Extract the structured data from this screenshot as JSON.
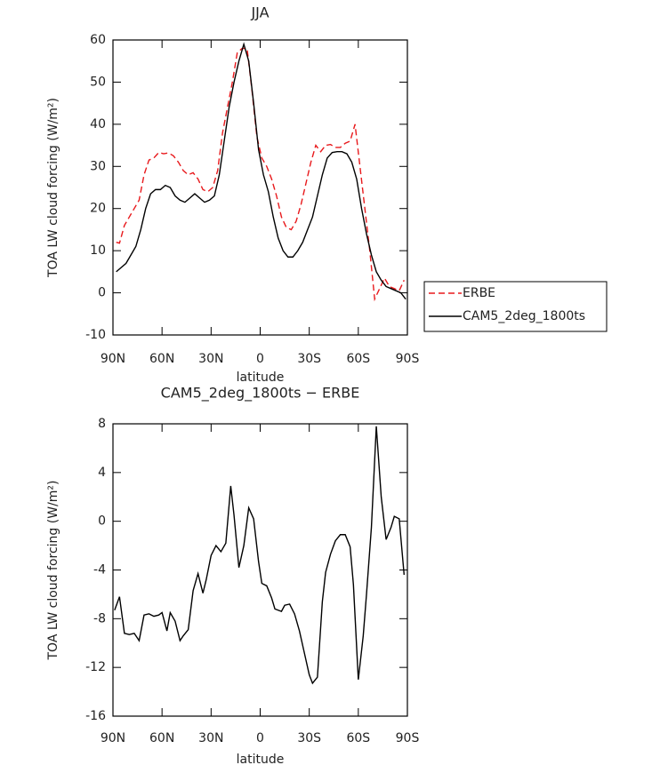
{
  "chart_data": [
    {
      "type": "line",
      "title": "JJA",
      "xlabel": "latitude",
      "ylabel": "TOA LW cloud forcing (W/m²)",
      "xlim": [
        90,
        -90
      ],
      "xticks": [
        {
          "value": 90,
          "label": "90N"
        },
        {
          "value": 60,
          "label": "60N"
        },
        {
          "value": 30,
          "label": "30N"
        },
        0,
        {
          "value": -30,
          "label": "30S"
        },
        {
          "value": -60,
          "label": "60S"
        },
        {
          "value": -90,
          "label": "90S"
        }
      ],
      "ylim": [
        -10,
        60
      ],
      "yticks": [
        -10,
        0,
        10,
        20,
        30,
        40,
        50,
        60
      ],
      "legend": "right",
      "series": [
        {
          "name": "ERBE",
          "color": "#e8191c",
          "linestyle": "dashed",
          "x": [
            88,
            86,
            83,
            80,
            77,
            74,
            71,
            68,
            65,
            62,
            59,
            56,
            53,
            50,
            47,
            44,
            41,
            38,
            35,
            32,
            29,
            26,
            23,
            20,
            17,
            14,
            11,
            8,
            5,
            2,
            -1,
            -4,
            -7,
            -10,
            -13,
            -16,
            -19,
            -22,
            -25,
            -28,
            -31,
            -34,
            -37,
            -40,
            -43,
            -46,
            -49,
            -52,
            -55,
            -58,
            -61,
            -64,
            -67,
            -70,
            -73,
            -76,
            -79,
            -82,
            -85,
            -88
          ],
          "values": [
            12,
            11.8,
            16,
            18,
            20,
            22,
            28,
            31.5,
            32,
            33.3,
            33,
            33.2,
            32.5,
            31,
            29,
            28,
            28.5,
            27,
            24.5,
            24,
            25,
            29,
            38,
            44,
            50,
            57,
            58,
            58,
            48,
            37,
            32,
            30,
            27,
            23,
            18,
            15.5,
            15,
            17,
            21,
            26,
            31,
            35,
            33.5,
            35,
            35.2,
            34.5,
            34.5,
            35.5,
            36,
            40,
            30,
            20,
            10,
            -1.5,
            1,
            3.5,
            1.5,
            1,
            0.5,
            3
          ]
        },
        {
          "name": "CAM5_2deg_1800ts",
          "color": "#000000",
          "linestyle": "solid",
          "x": [
            88,
            85,
            82,
            79,
            76,
            73,
            70,
            67,
            64,
            61,
            58,
            55,
            52,
            49,
            46,
            43,
            40,
            37,
            34,
            31,
            28,
            25,
            22,
            19,
            16,
            13,
            10,
            7,
            4,
            1,
            -2,
            -5,
            -8,
            -11,
            -14,
            -17,
            -20,
            -23,
            -26,
            -29,
            -32,
            -35,
            -38,
            -41,
            -44,
            -47,
            -50,
            -53,
            -56,
            -59,
            -62,
            -65,
            -68,
            -71,
            -74,
            -77,
            -80,
            -83,
            -86,
            -89
          ],
          "values": [
            5,
            6,
            7,
            9,
            11,
            15,
            20,
            23.5,
            24.5,
            24.5,
            25.5,
            25,
            23,
            22,
            21.5,
            22.5,
            23.5,
            22.5,
            21.5,
            22,
            23,
            28,
            36,
            44,
            50,
            55,
            59,
            55,
            45,
            34,
            28,
            24,
            18,
            13,
            10,
            8.5,
            8.5,
            10,
            12,
            15,
            18,
            23,
            28,
            32,
            33.3,
            33.5,
            33.5,
            33,
            31,
            27,
            20,
            14,
            9,
            5,
            3,
            1.5,
            1,
            0.5,
            0,
            -1.5
          ]
        }
      ]
    },
    {
      "type": "line",
      "title": "CAM5_2deg_1800ts − ERBE",
      "xlabel": "latitude",
      "ylabel": "TOA LW cloud forcing (W/m²)",
      "xlim": [
        90,
        -90
      ],
      "xticks": [
        {
          "value": 90,
          "label": "90N"
        },
        {
          "value": 60,
          "label": "60N"
        },
        {
          "value": 30,
          "label": "30N"
        },
        0,
        {
          "value": -30,
          "label": "30S"
        },
        {
          "value": -60,
          "label": "60S"
        },
        {
          "value": -90,
          "label": "90S"
        }
      ],
      "ylim": [
        -16,
        8
      ],
      "yticks": [
        -16,
        -12,
        -8,
        -4,
        0,
        4,
        8
      ],
      "color": "#000000",
      "linestyle": "solid",
      "x": [
        89,
        86,
        83,
        80,
        77,
        74,
        71,
        68,
        65,
        62,
        60,
        57,
        55,
        52,
        49,
        47,
        44,
        41,
        38,
        35,
        33,
        30,
        27,
        24,
        21,
        18,
        16,
        13,
        10,
        7,
        4,
        1,
        -1,
        -4,
        -7,
        -9,
        -13,
        -15,
        -18,
        -21,
        -24,
        -27,
        -30,
        -32,
        -35,
        -38,
        -40,
        -43,
        -46,
        -49,
        -52,
        -55,
        -57,
        -60,
        -63,
        -65,
        -68,
        -71,
        -74,
        -77,
        -80,
        -82,
        -85,
        -88
      ],
      "values": [
        -7.3,
        -6.2,
        -9.2,
        -9.3,
        -9.2,
        -9.8,
        -7.7,
        -7.6,
        -7.8,
        -7.7,
        -7.5,
        -9,
        -7.5,
        -8.2,
        -9.8,
        -9.4,
        -8.9,
        -5.7,
        -4.3,
        -5.9,
        -4.8,
        -2.8,
        -2,
        -2.5,
        -1.8,
        2.9,
        0.5,
        -3.8,
        -2,
        1.1,
        0.2,
        -3.3,
        -5.1,
        -5.3,
        -6.3,
        -7.2,
        -7.4,
        -6.9,
        -6.8,
        -7.6,
        -9,
        -10.8,
        -12.6,
        -13.3,
        -12.8,
        -6.6,
        -4.2,
        -2.7,
        -1.6,
        -1.1,
        -1.1,
        -2.1,
        -5.2,
        -13,
        -9.4,
        -6,
        -0.5,
        7.8,
        2,
        -1.5,
        -0.5,
        0.4,
        0.2,
        -4.4
      ]
    }
  ]
}
